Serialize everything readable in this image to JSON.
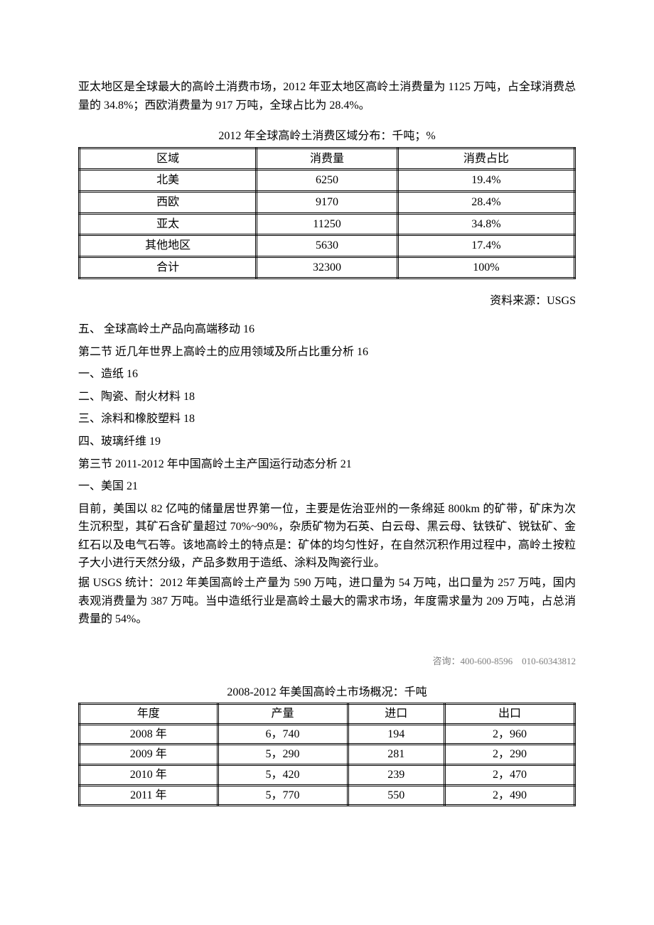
{
  "intro_para": "亚太地区是全球最大的高岭土消费市场，2012 年亚太地区高岭土消费量为 1125 万吨，占全球消费总量的 34.8%；西欧消费量为 917 万吨，全球占比为 28.4%。",
  "table1": {
    "caption": "2012 年全球高岭土消费区域分布：千吨；%",
    "headers": [
      "区域",
      "消费量",
      "消费占比"
    ],
    "rows": [
      [
        "北美",
        "6250",
        "19.4%"
      ],
      [
        "西欧",
        "9170",
        "28.4%"
      ],
      [
        "亚太",
        "11250",
        "34.8%"
      ],
      [
        "其他地区",
        "5630",
        "17.4%"
      ],
      [
        "合计",
        "32300",
        "100%"
      ]
    ]
  },
  "source_label": "资料来源：USGS",
  "toc": [
    "五、 全球高岭土产品向高端移动 16",
    "第二节 近几年世界上高岭土的应用领域及所占比重分析 16",
    "一、造纸 16",
    "二、陶瓷、耐火材料 18",
    "三、涂料和橡胶塑料 18",
    "四、玻璃纤维 19",
    "第三节 2011-2012 年中国高岭土主产国运行动态分析 21",
    "一、美国 21"
  ],
  "body_paras": [
    "目前，美国以 82 亿吨的储量居世界第一位，主要是佐治亚州的一条绵延 800km 的矿带，矿床为次生沉积型，其矿石含矿量超过 70%~90%，杂质矿物为石英、白云母、黑云母、钛铁矿、锐钛矿、金红石以及电气石等。该地高岭土的特点是：矿体的均匀性好，在自然沉积作用过程中，高岭土按粒子大小进行天然分级，产品多数用于造纸、涂料及陶瓷行业。",
    "据 USGS 统计：2012 年美国高岭土产量为 590 万吨，进口量为 54 万吨，出口量为 257 万吨，国内表观消费量为 387 万吨。当中造纸行业是高岭土最大的需求市场，年度需求量为 209 万吨，占总消费量的 54%。"
  ],
  "footer_contact": "咨询：400-600-8596　010-60343812",
  "table2": {
    "caption": "2008-2012 年美国高岭土市场概况：千吨",
    "headers": [
      "年度",
      "产量",
      "进口",
      "出口"
    ],
    "rows": [
      [
        "2008 年",
        "6，740",
        "194",
        "2，960"
      ],
      [
        "2009 年",
        "5，290",
        "281",
        "2，290"
      ],
      [
        "2010 年",
        "5，420",
        "239",
        "2，470"
      ],
      [
        "2011 年",
        "5，770",
        "550",
        "2，490"
      ]
    ]
  }
}
